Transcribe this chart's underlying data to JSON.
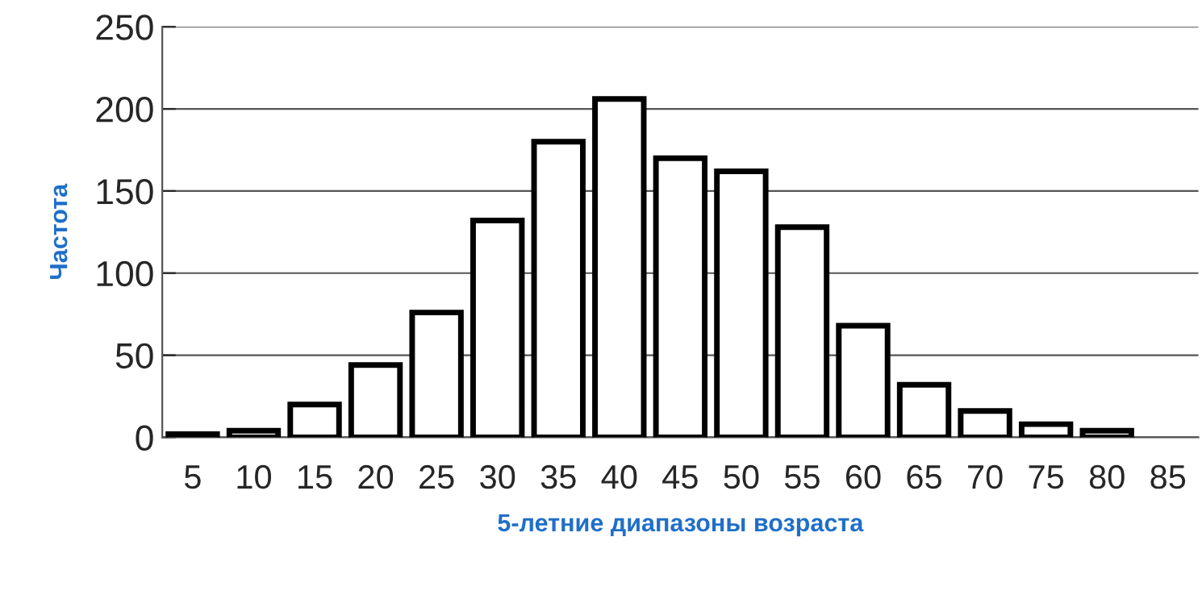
{
  "chart_data": {
    "type": "bar",
    "categories": [
      "5",
      "10",
      "15",
      "20",
      "25",
      "30",
      "35",
      "40",
      "45",
      "50",
      "55",
      "60",
      "65",
      "70",
      "75",
      "80",
      "85"
    ],
    "values": [
      2,
      4,
      20,
      44,
      76,
      132,
      180,
      206,
      170,
      162,
      128,
      68,
      32,
      16,
      8,
      4,
      null
    ],
    "color": "#ffffff",
    "xlabel": "5-летние диапазоны возраста",
    "ylabel": "Частота",
    "ylim": [
      0,
      250
    ],
    "yticks": [
      0,
      50,
      100,
      150,
      200,
      250
    ],
    "grid": "y"
  }
}
